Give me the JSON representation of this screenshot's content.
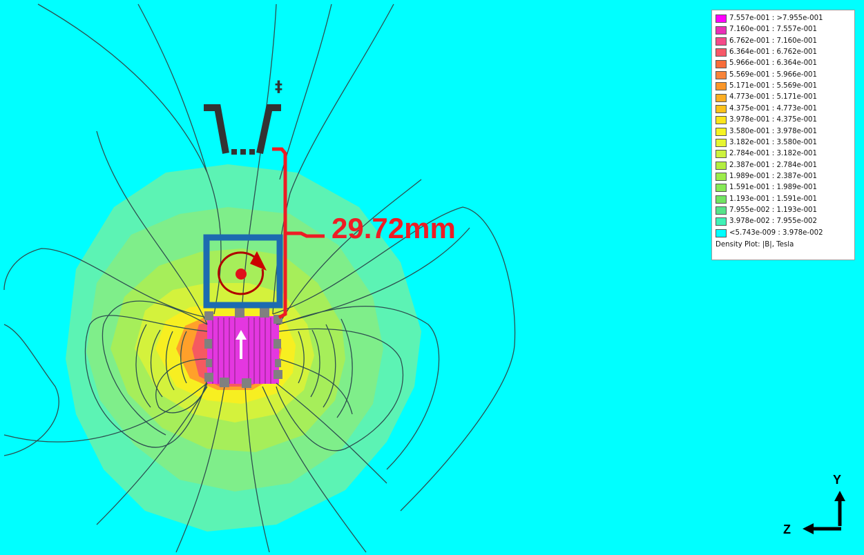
{
  "plot": {
    "background_color": "#00ffff",
    "outer_field_color": "#5cf3b4",
    "mid_field_color": "#a6ee5a",
    "inner_field_color": "#f2f02a",
    "core_field_color": "#ff9c2e",
    "magnet_color": "#e437e0",
    "contour_color": "#2d4f4f"
  },
  "legend": {
    "entries": [
      {
        "label": "7.557e-001 : >7.955e-001",
        "color": "#ff00ff"
      },
      {
        "label": "7.160e-001 : 7.557e-001",
        "color": "#ea2fb8"
      },
      {
        "label": "6.762e-001 : 7.160e-001",
        "color": "#f44b8a"
      },
      {
        "label": "6.364e-001 : 6.762e-001",
        "color": "#f65868"
      },
      {
        "label": "5.966e-001 : 6.364e-001",
        "color": "#f86c3a"
      },
      {
        "label": "5.569e-001 : 5.966e-001",
        "color": "#f8843a"
      },
      {
        "label": "5.171e-001 : 5.569e-001",
        "color": "#fa9628"
      },
      {
        "label": "4.773e-001 : 5.171e-001",
        "color": "#fcae23"
      },
      {
        "label": "4.375e-001 : 4.773e-001",
        "color": "#fcc21b"
      },
      {
        "label": "3.978e-001 : 4.375e-001",
        "color": "#fde51b"
      },
      {
        "label": "3.580e-001 : 3.978e-001",
        "color": "#f6f323"
      },
      {
        "label": "3.182e-001 : 3.580e-001",
        "color": "#e6f531"
      },
      {
        "label": "2.784e-001 : 3.182e-001",
        "color": "#cdf23d"
      },
      {
        "label": "2.387e-001 : 2.784e-001",
        "color": "#b3ee40"
      },
      {
        "label": "1.989e-001 : 2.387e-001",
        "color": "#9ded4b"
      },
      {
        "label": "1.591e-001 : 1.989e-001",
        "color": "#86ea56"
      },
      {
        "label": "1.193e-001 : 1.591e-001",
        "color": "#71e462"
      },
      {
        "label": "7.955e-002 : 1.193e-001",
        "color": "#57e38a"
      },
      {
        "label": "3.978e-002 : 7.955e-002",
        "color": "#40f2b7"
      },
      {
        "label": "<5.743e-009 : 3.978e-002",
        "color": "#00ffff"
      }
    ],
    "footer": "Density Plot: |B|, Tesla"
  },
  "annotations": {
    "distance_label": "29.72mm",
    "dagger_symbol": "‡",
    "annotation_color": "#ee1c24",
    "coil_color": "#1c6bb0",
    "rotation_color": "#c00000",
    "pad_color": "#808080"
  },
  "axes": {
    "y_label": "Y",
    "z_label": "Z"
  }
}
